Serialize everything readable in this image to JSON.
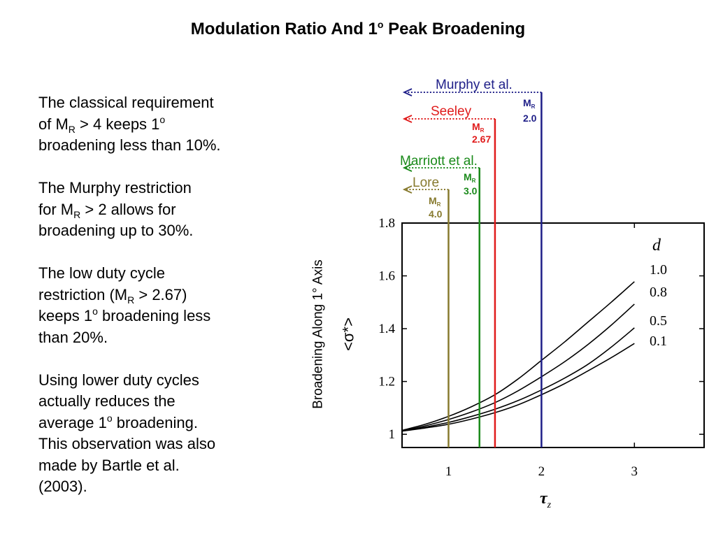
{
  "slide": {
    "title": {
      "before": "Modulation Ratio And 1",
      "sup": "o",
      "after": " Peak Broadening"
    }
  },
  "text_panel": {
    "paragraphs": [
      {
        "lines": [
          [
            {
              "t": "The classical requirement"
            }
          ],
          [
            {
              "t": "of M"
            },
            {
              "sub": "R"
            },
            {
              "t": " > 4 keeps 1"
            },
            {
              "sup": "o"
            }
          ],
          [
            {
              "t": "broadening less than 10%."
            }
          ]
        ]
      },
      {
        "lines": [
          [
            {
              "t": "The Murphy restriction"
            }
          ],
          [
            {
              "t": "for M"
            },
            {
              "sub": "R"
            },
            {
              "t": " > 2 allows for"
            }
          ],
          [
            {
              "t": "broadening up to 30%."
            }
          ]
        ]
      },
      {
        "lines": [
          [
            {
              "t": "The low duty cycle"
            }
          ],
          [
            {
              "t": "restriction (M"
            },
            {
              "sub": "R"
            },
            {
              "t": " > 2.67)"
            }
          ],
          [
            {
              "t": "keeps 1"
            },
            {
              "sup": "o"
            },
            {
              "t": " broadening less"
            }
          ],
          [
            {
              "t": "than 20%."
            }
          ]
        ]
      },
      {
        "lines": [
          [
            {
              "t": "Using lower duty cycles"
            }
          ],
          [
            {
              "t": "actually reduces the"
            }
          ],
          [
            {
              "t": "average 1"
            },
            {
              "sup": "o"
            },
            {
              "t": " broadening."
            }
          ],
          [
            {
              "t": "This observation was also"
            }
          ],
          [
            {
              "t": "made by Bartle et al."
            }
          ],
          [
            {
              "t": "(2003)."
            }
          ]
        ]
      }
    ]
  },
  "chart_data": {
    "type": "line",
    "xlabel": "τ",
    "xlabel_sub": "z",
    "ylabel": "Broadening Along 1° Axis",
    "ylabel_line2": "<σ*>",
    "xlim": [
      0.5,
      3.75
    ],
    "ylim": [
      0.95,
      1.8
    ],
    "xticks": [
      1,
      2,
      3
    ],
    "xtick_labels": [
      "1",
      "2",
      "3"
    ],
    "yticks": [
      1,
      1.2,
      1.4,
      1.6,
      1.8
    ],
    "ytick_labels": [
      "1",
      "1.2",
      "1.4",
      "1.6",
      "1.8"
    ],
    "grid": false,
    "legend_title": "d",
    "legend_position": "right, inside plot",
    "x": [
      0.5,
      0.75,
      1.0,
      1.25,
      1.5,
      1.75,
      2.0,
      2.25,
      2.5,
      2.75,
      3.0
    ],
    "series": [
      {
        "name": "1.0",
        "values": [
          1.015,
          1.038,
          1.068,
          1.105,
          1.15,
          1.21,
          1.28,
          1.35,
          1.425,
          1.5,
          1.578
        ]
      },
      {
        "name": "0.8",
        "values": [
          1.013,
          1.032,
          1.056,
          1.085,
          1.12,
          1.165,
          1.218,
          1.275,
          1.34,
          1.413,
          1.493
        ]
      },
      {
        "name": "0.5",
        "values": [
          1.012,
          1.027,
          1.045,
          1.068,
          1.095,
          1.128,
          1.168,
          1.213,
          1.265,
          1.33,
          1.403
        ]
      },
      {
        "name": "0.1",
        "values": [
          1.012,
          1.024,
          1.038,
          1.058,
          1.082,
          1.112,
          1.15,
          1.192,
          1.24,
          1.29,
          1.344
        ]
      }
    ],
    "reference_lines": [
      {
        "label": "Murphy et al.",
        "mr_symbol": "M",
        "mr_sub": "R",
        "mr_value": "2.0",
        "x": 2.0,
        "color": "#1f1f88"
      },
      {
        "label": "Seeley",
        "mr_symbol": "M",
        "mr_sub": "R",
        "mr_value": "2.67",
        "x": 1.5,
        "color": "#e01b1b"
      },
      {
        "label": "Marriott et al.",
        "mr_symbol": "M",
        "mr_sub": "R",
        "mr_value": "3.0",
        "x": 1.333,
        "color": "#1a8a1a"
      },
      {
        "label": "Lore",
        "mr_symbol": "M",
        "mr_sub": "R",
        "mr_value": "4.0",
        "x": 1.0,
        "color": "#877a2e"
      }
    ]
  }
}
